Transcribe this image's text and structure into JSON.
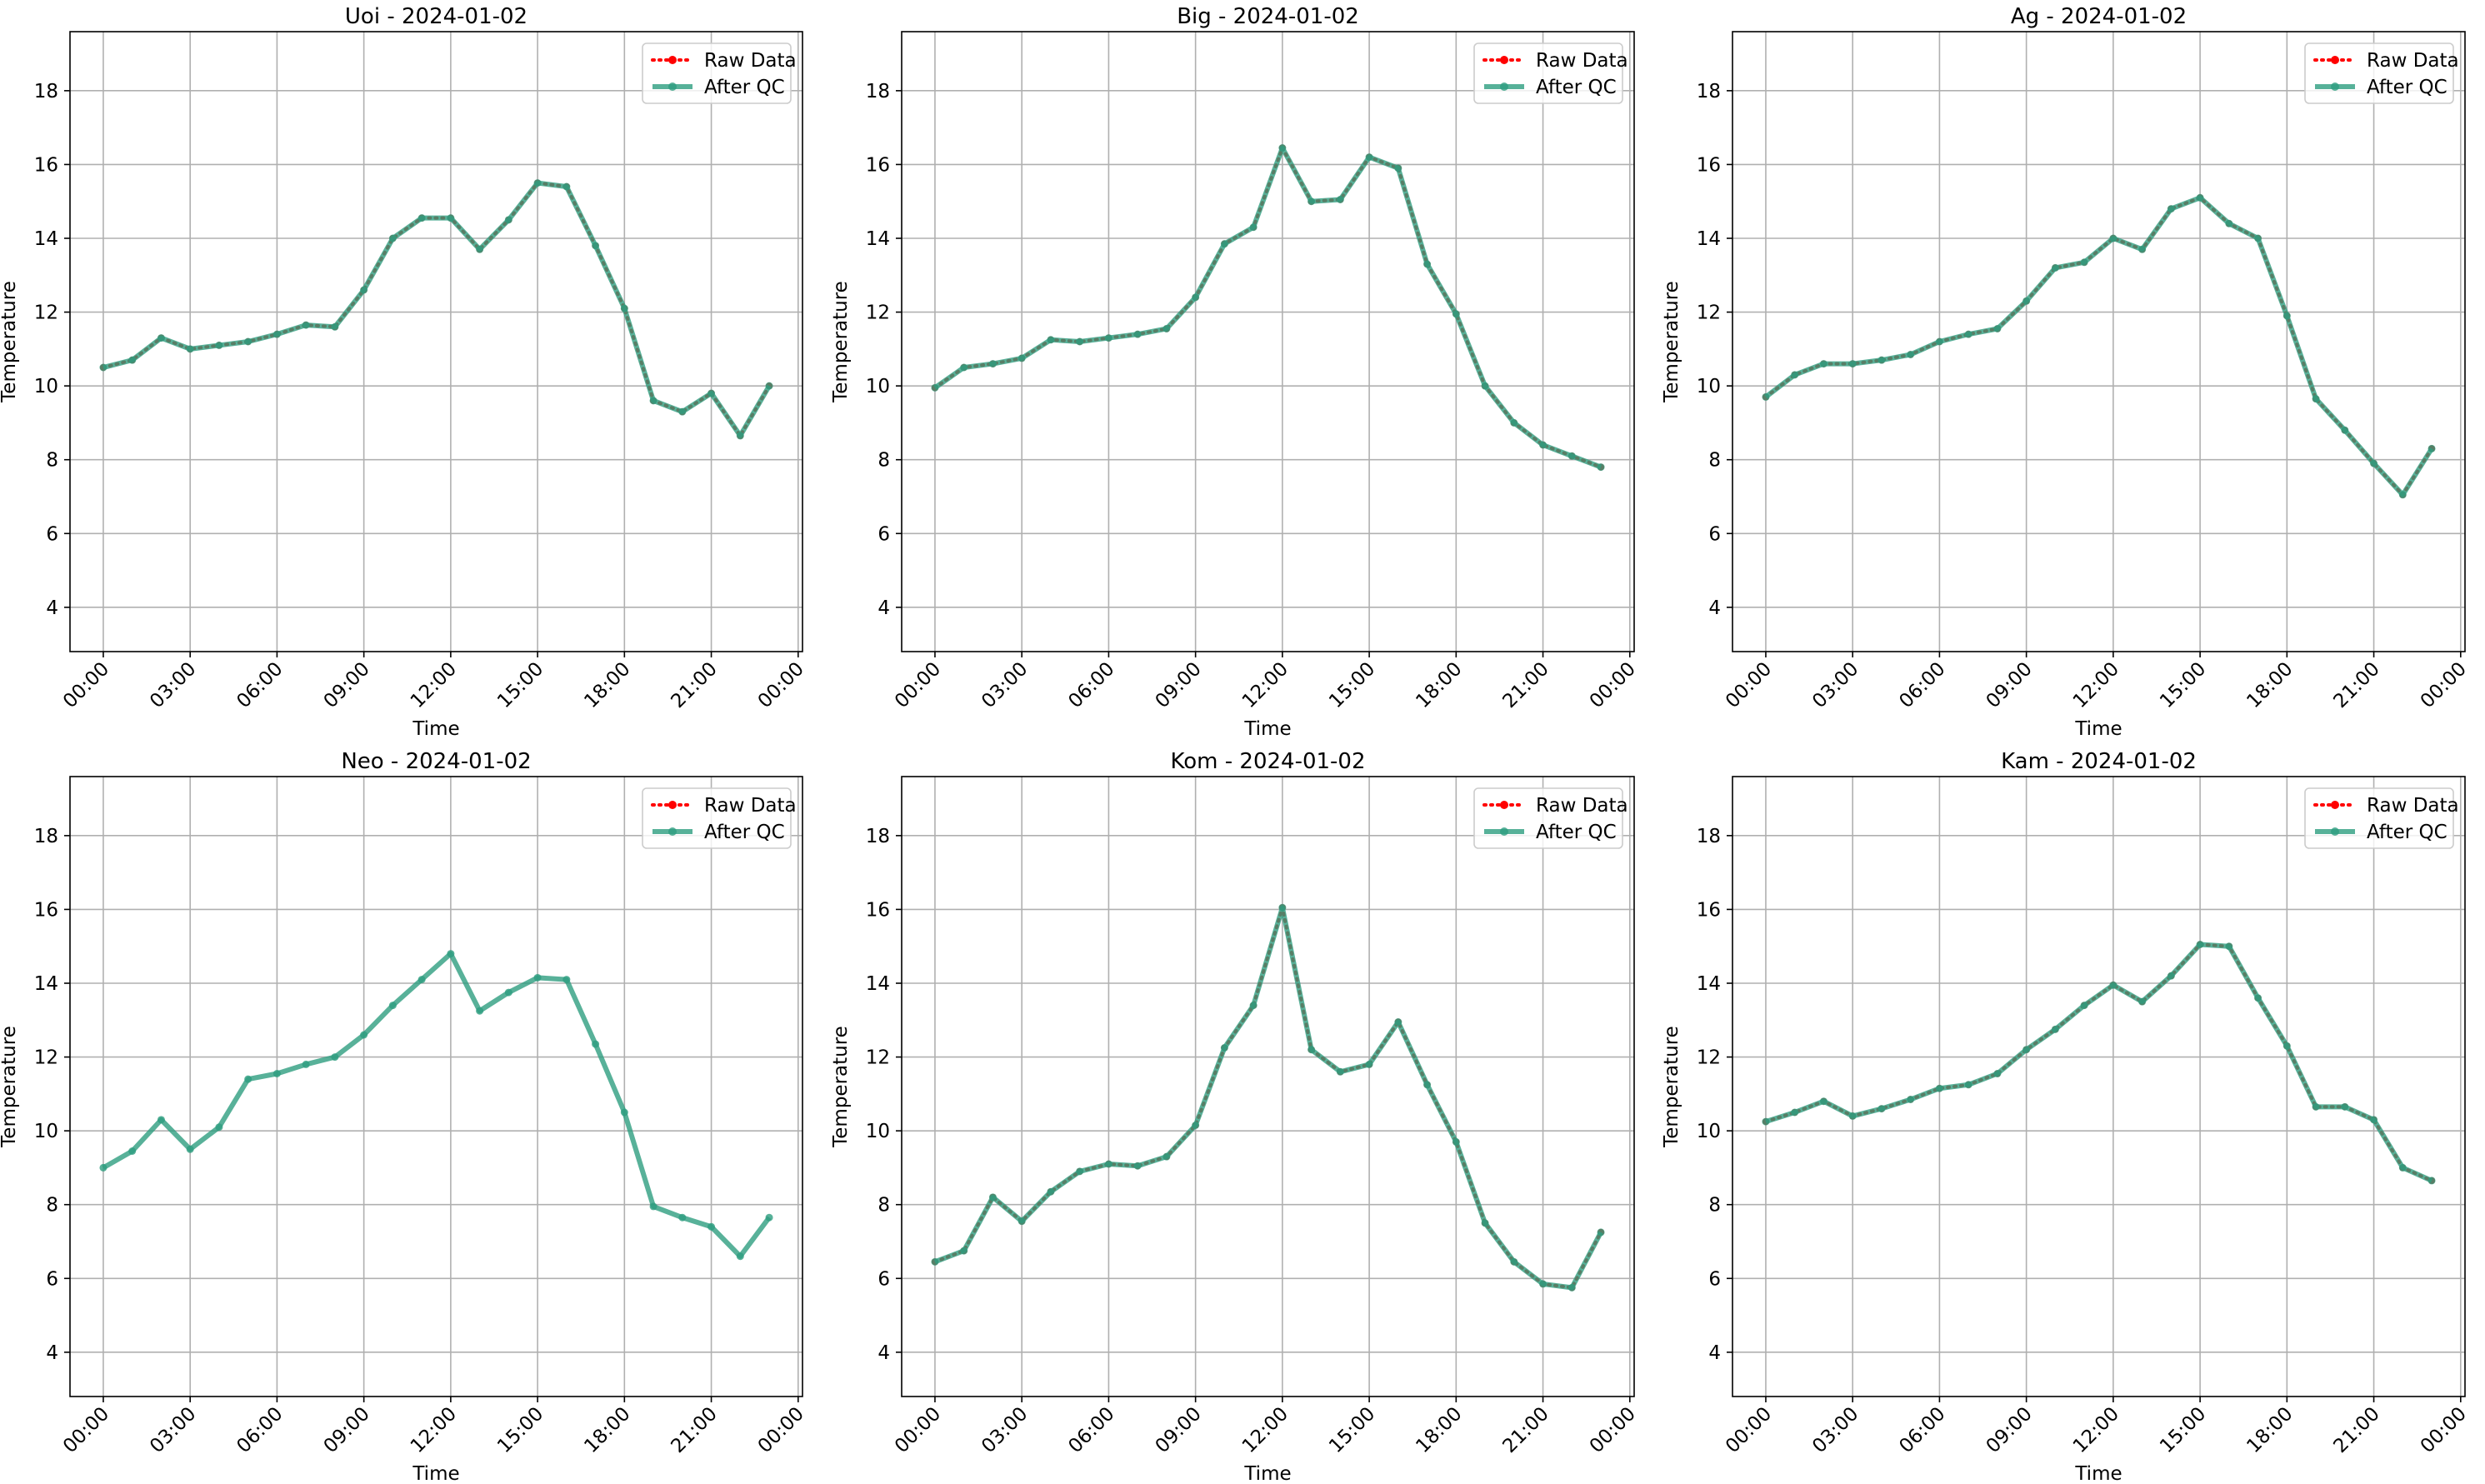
{
  "chart_data": [
    {
      "type": "line",
      "title": "Uoi - 2024-01-02",
      "xlabel": "Time",
      "ylabel": "Temperature",
      "x": [
        0,
        1,
        2,
        3,
        4,
        5,
        6,
        7,
        8,
        9,
        10,
        11,
        12,
        13,
        14,
        15,
        16,
        17,
        18,
        19,
        20,
        21,
        22,
        23
      ],
      "xlim": [
        -1.15,
        24.15
      ],
      "xticks": [
        {
          "value": 0,
          "label": "00:00"
        },
        {
          "value": 3,
          "label": "03:00"
        },
        {
          "value": 6,
          "label": "06:00"
        },
        {
          "value": 9,
          "label": "09:00"
        },
        {
          "value": 12,
          "label": "12:00"
        },
        {
          "value": 15,
          "label": "15:00"
        },
        {
          "value": 18,
          "label": "18:00"
        },
        {
          "value": 21,
          "label": "21:00"
        },
        {
          "value": 24,
          "label": "00:00"
        }
      ],
      "ylim": [
        2.8,
        19.6
      ],
      "yticks": [
        4,
        6,
        8,
        10,
        12,
        14,
        16,
        18
      ],
      "grid": true,
      "legend": "upper right",
      "series": [
        {
          "name": "Raw Data",
          "color": "#ff0000",
          "values": [
            10.5,
            10.7,
            11.3,
            11.0,
            11.1,
            11.2,
            11.4,
            11.65,
            11.6,
            12.6,
            14.0,
            14.55,
            14.55,
            13.7,
            14.5,
            15.5,
            15.4,
            13.8,
            12.1,
            9.6,
            9.3,
            9.8,
            8.65,
            10.0
          ]
        },
        {
          "name": "After QC",
          "color": "#2e9e80",
          "values": [
            10.5,
            10.7,
            11.3,
            11.0,
            11.1,
            11.2,
            11.4,
            11.65,
            11.6,
            12.6,
            14.0,
            14.55,
            14.55,
            13.7,
            14.5,
            15.5,
            15.4,
            13.8,
            12.1,
            9.6,
            9.3,
            9.8,
            8.65,
            10.0
          ]
        }
      ]
    },
    {
      "type": "line",
      "title": "Big - 2024-01-02",
      "xlabel": "Time",
      "ylabel": "Temperature",
      "x": [
        0,
        1,
        2,
        3,
        4,
        5,
        6,
        7,
        8,
        9,
        10,
        11,
        12,
        13,
        14,
        15,
        16,
        17,
        18,
        19,
        20,
        21,
        22,
        23
      ],
      "xlim": [
        -1.15,
        24.15
      ],
      "xticks": [
        {
          "value": 0,
          "label": "00:00"
        },
        {
          "value": 3,
          "label": "03:00"
        },
        {
          "value": 6,
          "label": "06:00"
        },
        {
          "value": 9,
          "label": "09:00"
        },
        {
          "value": 12,
          "label": "12:00"
        },
        {
          "value": 15,
          "label": "15:00"
        },
        {
          "value": 18,
          "label": "18:00"
        },
        {
          "value": 21,
          "label": "21:00"
        },
        {
          "value": 24,
          "label": "00:00"
        }
      ],
      "ylim": [
        2.8,
        19.6
      ],
      "yticks": [
        4,
        6,
        8,
        10,
        12,
        14,
        16,
        18
      ],
      "grid": true,
      "legend": "upper right",
      "series": [
        {
          "name": "Raw Data",
          "color": "#ff0000",
          "values": [
            9.95,
            10.5,
            10.6,
            10.75,
            11.25,
            11.2,
            11.3,
            11.4,
            11.55,
            12.4,
            13.85,
            14.3,
            16.45,
            15.0,
            15.05,
            16.2,
            15.9,
            13.3,
            11.95,
            10.0,
            9.0,
            8.4,
            8.1,
            7.8
          ]
        },
        {
          "name": "After QC",
          "color": "#2e9e80",
          "values": [
            9.95,
            10.5,
            10.6,
            10.75,
            11.25,
            11.2,
            11.3,
            11.4,
            11.55,
            12.4,
            13.85,
            14.3,
            16.45,
            15.0,
            15.05,
            16.2,
            15.9,
            13.3,
            11.95,
            10.0,
            9.0,
            8.4,
            8.1,
            7.8
          ]
        }
      ]
    },
    {
      "type": "line",
      "title": "Ag - 2024-01-02",
      "xlabel": "Time",
      "ylabel": "Temperature",
      "x": [
        0,
        1,
        2,
        3,
        4,
        5,
        6,
        7,
        8,
        9,
        10,
        11,
        12,
        13,
        14,
        15,
        16,
        17,
        18,
        19,
        20,
        21,
        22,
        23
      ],
      "xlim": [
        -1.15,
        24.15
      ],
      "xticks": [
        {
          "value": 0,
          "label": "00:00"
        },
        {
          "value": 3,
          "label": "03:00"
        },
        {
          "value": 6,
          "label": "06:00"
        },
        {
          "value": 9,
          "label": "09:00"
        },
        {
          "value": 12,
          "label": "12:00"
        },
        {
          "value": 15,
          "label": "15:00"
        },
        {
          "value": 18,
          "label": "18:00"
        },
        {
          "value": 21,
          "label": "21:00"
        },
        {
          "value": 24,
          "label": "00:00"
        }
      ],
      "ylim": [
        2.8,
        19.6
      ],
      "yticks": [
        4,
        6,
        8,
        10,
        12,
        14,
        16,
        18
      ],
      "grid": true,
      "legend": "upper right",
      "series": [
        {
          "name": "Raw Data",
          "color": "#ff0000",
          "values": [
            9.7,
            10.3,
            10.6,
            10.6,
            10.7,
            10.85,
            11.2,
            11.4,
            11.55,
            12.3,
            13.2,
            13.35,
            14.0,
            13.7,
            14.8,
            15.1,
            14.4,
            14.0,
            11.9,
            9.65,
            8.8,
            7.9,
            7.05,
            8.3
          ]
        },
        {
          "name": "After QC",
          "color": "#2e9e80",
          "values": [
            9.7,
            10.3,
            10.6,
            10.6,
            10.7,
            10.85,
            11.2,
            11.4,
            11.55,
            12.3,
            13.2,
            13.35,
            14.0,
            13.7,
            14.8,
            15.1,
            14.4,
            14.0,
            11.9,
            9.65,
            8.8,
            7.9,
            7.05,
            8.3
          ]
        }
      ]
    },
    {
      "type": "line",
      "title": "Neo - 2024-01-02",
      "xlabel": "Time",
      "ylabel": "Temperature",
      "x": [
        0,
        1,
        2,
        3,
        4,
        5,
        6,
        7,
        8,
        9,
        10,
        11,
        12,
        13,
        14,
        15,
        16,
        17,
        18,
        19,
        20,
        21,
        22,
        23
      ],
      "xlim": [
        -1.15,
        24.15
      ],
      "xticks": [
        {
          "value": 0,
          "label": "00:00"
        },
        {
          "value": 3,
          "label": "03:00"
        },
        {
          "value": 6,
          "label": "06:00"
        },
        {
          "value": 9,
          "label": "09:00"
        },
        {
          "value": 12,
          "label": "12:00"
        },
        {
          "value": 15,
          "label": "15:00"
        },
        {
          "value": 18,
          "label": "18:00"
        },
        {
          "value": 21,
          "label": "21:00"
        },
        {
          "value": 24,
          "label": "00:00"
        }
      ],
      "ylim": [
        2.8,
        19.6
      ],
      "yticks": [
        4,
        6,
        8,
        10,
        12,
        14,
        16,
        18
      ],
      "grid": true,
      "legend": "upper right",
      "series": [
        {
          "name": "Raw Data",
          "color": "#ff0000",
          "values": [
            null,
            null,
            null,
            null,
            null,
            null,
            null,
            null,
            null,
            null,
            null,
            null,
            null,
            null,
            null,
            null,
            null,
            null,
            null,
            null,
            null,
            null,
            null,
            null
          ]
        },
        {
          "name": "After QC",
          "color": "#2e9e80",
          "values": [
            9.0,
            9.45,
            10.3,
            9.5,
            10.1,
            11.4,
            11.55,
            11.8,
            12.0,
            12.6,
            13.4,
            14.1,
            14.8,
            13.25,
            13.75,
            14.15,
            14.1,
            12.35,
            10.5,
            7.95,
            7.65,
            7.4,
            6.6,
            7.65
          ]
        }
      ]
    },
    {
      "type": "line",
      "title": "Kom - 2024-01-02",
      "xlabel": "Time",
      "ylabel": "Temperature",
      "x": [
        0,
        1,
        2,
        3,
        4,
        5,
        6,
        7,
        8,
        9,
        10,
        11,
        12,
        13,
        14,
        15,
        16,
        17,
        18,
        19,
        20,
        21,
        22,
        23
      ],
      "xlim": [
        -1.15,
        24.15
      ],
      "xticks": [
        {
          "value": 0,
          "label": "00:00"
        },
        {
          "value": 3,
          "label": "03:00"
        },
        {
          "value": 6,
          "label": "06:00"
        },
        {
          "value": 9,
          "label": "09:00"
        },
        {
          "value": 12,
          "label": "12:00"
        },
        {
          "value": 15,
          "label": "15:00"
        },
        {
          "value": 18,
          "label": "18:00"
        },
        {
          "value": 21,
          "label": "21:00"
        },
        {
          "value": 24,
          "label": "00:00"
        }
      ],
      "ylim": [
        2.8,
        19.6
      ],
      "yticks": [
        4,
        6,
        8,
        10,
        12,
        14,
        16,
        18
      ],
      "grid": true,
      "legend": "upper right",
      "series": [
        {
          "name": "Raw Data",
          "color": "#ff0000",
          "values": [
            6.45,
            6.75,
            8.2,
            7.55,
            8.35,
            8.9,
            9.1,
            9.05,
            9.3,
            10.15,
            12.25,
            13.4,
            16.05,
            12.2,
            11.6,
            11.8,
            12.95,
            11.25,
            9.7,
            7.5,
            6.45,
            5.85,
            5.75,
            7.25
          ]
        },
        {
          "name": "After QC",
          "color": "#2e9e80",
          "values": [
            6.45,
            6.75,
            8.2,
            7.55,
            8.35,
            8.9,
            9.1,
            9.05,
            9.3,
            10.15,
            12.25,
            13.4,
            16.05,
            12.2,
            11.6,
            11.8,
            12.95,
            11.25,
            9.7,
            7.5,
            6.45,
            5.85,
            5.75,
            7.25
          ]
        }
      ]
    },
    {
      "type": "line",
      "title": "Kam - 2024-01-02",
      "xlabel": "Time",
      "ylabel": "Temperature",
      "x": [
        0,
        1,
        2,
        3,
        4,
        5,
        6,
        7,
        8,
        9,
        10,
        11,
        12,
        13,
        14,
        15,
        16,
        17,
        18,
        19,
        20,
        21,
        22,
        23
      ],
      "xlim": [
        -1.15,
        24.15
      ],
      "xticks": [
        {
          "value": 0,
          "label": "00:00"
        },
        {
          "value": 3,
          "label": "03:00"
        },
        {
          "value": 6,
          "label": "06:00"
        },
        {
          "value": 9,
          "label": "09:00"
        },
        {
          "value": 12,
          "label": "12:00"
        },
        {
          "value": 15,
          "label": "15:00"
        },
        {
          "value": 18,
          "label": "18:00"
        },
        {
          "value": 21,
          "label": "21:00"
        },
        {
          "value": 24,
          "label": "00:00"
        }
      ],
      "ylim": [
        2.8,
        19.6
      ],
      "yticks": [
        4,
        6,
        8,
        10,
        12,
        14,
        16,
        18
      ],
      "grid": true,
      "legend": "upper right",
      "series": [
        {
          "name": "Raw Data",
          "color": "#ff0000",
          "values": [
            10.25,
            10.5,
            10.8,
            10.4,
            10.6,
            10.85,
            11.15,
            11.25,
            11.55,
            12.2,
            12.75,
            13.4,
            13.95,
            13.5,
            14.2,
            15.05,
            15.0,
            13.6,
            12.3,
            10.65,
            10.65,
            10.3,
            9.0,
            8.65
          ]
        },
        {
          "name": "After QC",
          "color": "#2e9e80",
          "values": [
            10.25,
            10.5,
            10.8,
            10.4,
            10.6,
            10.85,
            11.15,
            11.25,
            11.55,
            12.2,
            12.75,
            13.4,
            13.95,
            13.5,
            14.2,
            15.05,
            15.0,
            13.6,
            12.3,
            10.65,
            10.65,
            10.3,
            9.0,
            8.65
          ]
        }
      ]
    }
  ]
}
